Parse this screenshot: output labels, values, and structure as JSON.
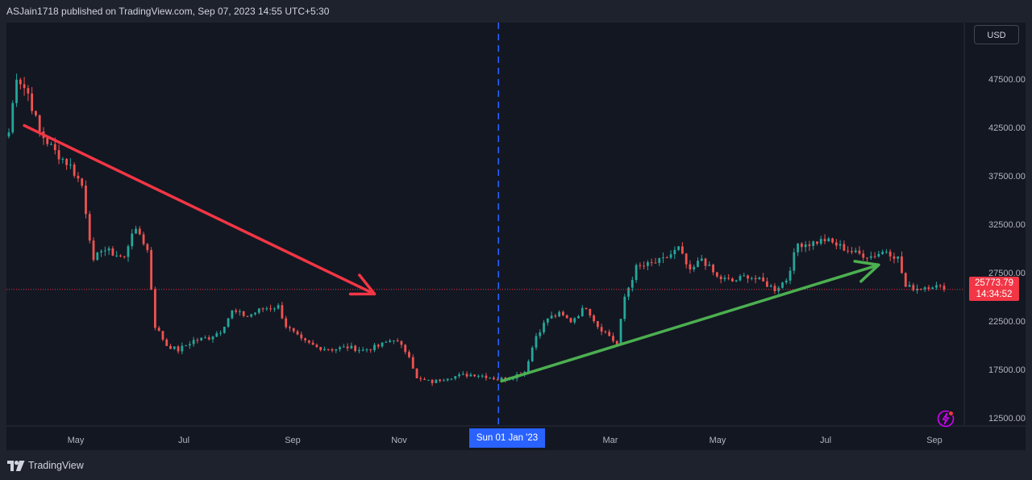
{
  "header": {
    "publish_text": "ASJain1718 published on TradingView.com, Sep 07, 2023 14:55 UTC+5:30"
  },
  "toolbar": {
    "currency_label": "USD"
  },
  "price_tag": {
    "price": "25773.79",
    "countdown": "14:34:52"
  },
  "crosshair": {
    "date_label": "Sun 01 Jan '23"
  },
  "footer": {
    "brand": "TradingView"
  },
  "colors": {
    "background": "#131722",
    "frame": "#1e222d",
    "up_candle": "#26a69a",
    "down_candle": "#ef5350",
    "bear_arrow": "#f23645",
    "bull_arrow": "#4caf50",
    "crosshair": "#2962ff",
    "alert_icon": "#d500f9"
  },
  "icons": {
    "alert": "lightning-alert-icon",
    "brand": "tradingview-logo-icon"
  },
  "chart_data": {
    "type": "candlestick",
    "series_name": "",
    "y_axis": {
      "labels": [
        "47500.00",
        "42500.00",
        "37500.00",
        "32500.00",
        "27500.00",
        "22500.00",
        "17500.00",
        "12500.00"
      ],
      "values": [
        47500,
        42500,
        37500,
        32500,
        27500,
        22500,
        17500,
        12500
      ],
      "range": [
        10000,
        49700
      ]
    },
    "x_axis": {
      "labels": [
        "May",
        "Jul",
        "Sep",
        "Nov",
        "Mar",
        "May",
        "Jul",
        "Sep"
      ]
    },
    "current_price": 25773.79,
    "close_path": [
      [
        0,
        42000
      ],
      [
        2,
        47900
      ],
      [
        5,
        46000
      ],
      [
        8,
        42000
      ],
      [
        12,
        40000
      ],
      [
        16,
        38500
      ],
      [
        19,
        36500
      ],
      [
        22,
        28500
      ],
      [
        24,
        30000
      ],
      [
        27,
        29500
      ],
      [
        30,
        29000
      ],
      [
        32,
        31800
      ],
      [
        34,
        31500
      ],
      [
        36,
        29800
      ],
      [
        38,
        22000
      ],
      [
        41,
        20000
      ],
      [
        44,
        19500
      ],
      [
        48,
        20500
      ],
      [
        52,
        20800
      ],
      [
        55,
        21500
      ],
      [
        58,
        23500
      ],
      [
        62,
        23000
      ],
      [
        66,
        23800
      ],
      [
        70,
        24000
      ],
      [
        72,
        22000
      ],
      [
        76,
        20500
      ],
      [
        80,
        19800
      ],
      [
        84,
        19600
      ],
      [
        88,
        19800
      ],
      [
        92,
        19500
      ],
      [
        96,
        19900
      ],
      [
        100,
        20700
      ],
      [
        104,
        19000
      ],
      [
        106,
        16500
      ],
      [
        110,
        16200
      ],
      [
        114,
        16700
      ],
      [
        118,
        16900
      ],
      [
        121,
        17000
      ],
      [
        124,
        16800
      ],
      [
        127,
        16500
      ],
      [
        130,
        16600
      ],
      [
        134,
        17300
      ],
      [
        137,
        21000
      ],
      [
        140,
        22800
      ],
      [
        143,
        23200
      ],
      [
        146,
        22500
      ],
      [
        150,
        24000
      ],
      [
        153,
        22000
      ],
      [
        156,
        21000
      ],
      [
        158,
        20000
      ],
      [
        160,
        25000
      ],
      [
        163,
        28000
      ],
      [
        167,
        28400
      ],
      [
        170,
        28800
      ],
      [
        174,
        30000
      ],
      [
        177,
        27500
      ],
      [
        180,
        29000
      ],
      [
        184,
        27000
      ],
      [
        188,
        26600
      ],
      [
        192,
        27200
      ],
      [
        196,
        26500
      ],
      [
        199,
        25800
      ],
      [
        202,
        26800
      ],
      [
        205,
        30500
      ],
      [
        208,
        30500
      ],
      [
        212,
        30900
      ],
      [
        216,
        30200
      ],
      [
        220,
        29500
      ],
      [
        224,
        29200
      ],
      [
        228,
        29800
      ],
      [
        231,
        29000
      ],
      [
        233,
        26000
      ],
      [
        236,
        25900
      ],
      [
        240,
        26200
      ],
      [
        243,
        25773.79
      ]
    ],
    "annotations": [
      {
        "type": "arrow",
        "color": "bear",
        "from": {
          "x": 4,
          "y": 42700
        },
        "to": {
          "x": 95,
          "y": 25300
        }
      },
      {
        "type": "arrow",
        "color": "bull",
        "from": {
          "x": 128,
          "y": 16300
        },
        "to": {
          "x": 226,
          "y": 28300
        }
      },
      {
        "type": "vertical_line",
        "x": 127,
        "style": "dashed"
      },
      {
        "type": "horizontal_line",
        "y": 25773.79,
        "style": "dotted"
      }
    ]
  }
}
